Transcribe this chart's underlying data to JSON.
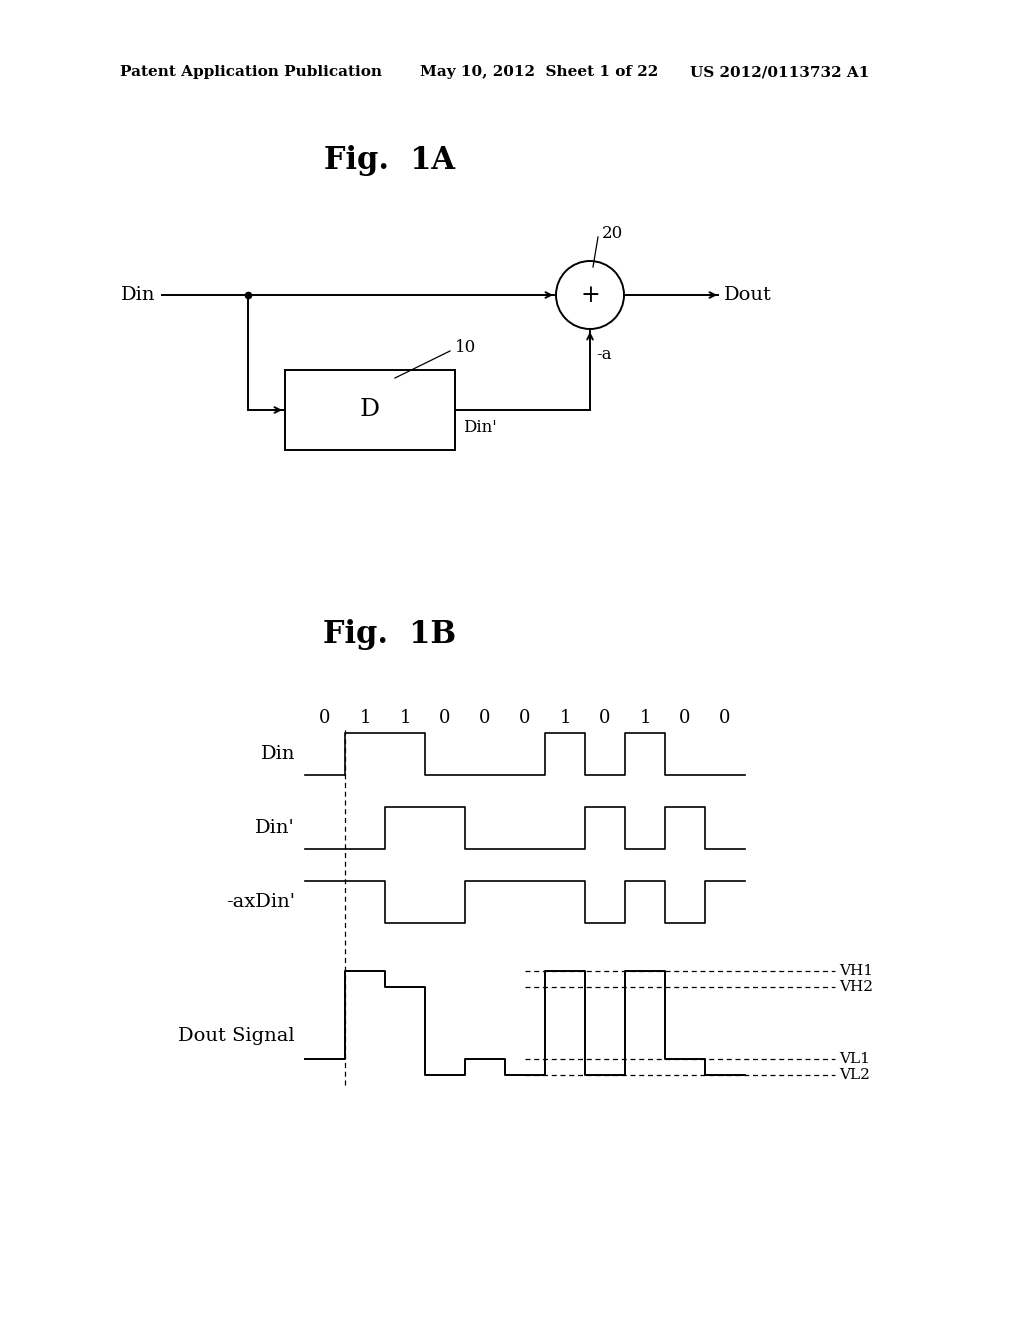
{
  "bg_color": "#ffffff",
  "header_left": "Patent Application Publication",
  "header_mid": "May 10, 2012  Sheet 1 of 22",
  "header_right": "US 2012/0113732 A1",
  "fig1a_title": "Fig.  1A",
  "fig1b_title": "Fig.  1B",
  "schematic": {
    "din_label": "Din",
    "dout_label": "Dout",
    "d_block_label": "D",
    "d_block_num": "10",
    "circle_num": "20",
    "minus_a_label": "-a",
    "dinp_label": "Din’"
  },
  "waveform": {
    "bits": [
      "0",
      "1",
      "1",
      "0",
      "0",
      "0",
      "1",
      "0",
      "1",
      "0",
      "0"
    ],
    "vh1_label": "VH1",
    "vh2_label": "VH2",
    "vl1_label": "VL1",
    "vl2_label": "VL2"
  }
}
